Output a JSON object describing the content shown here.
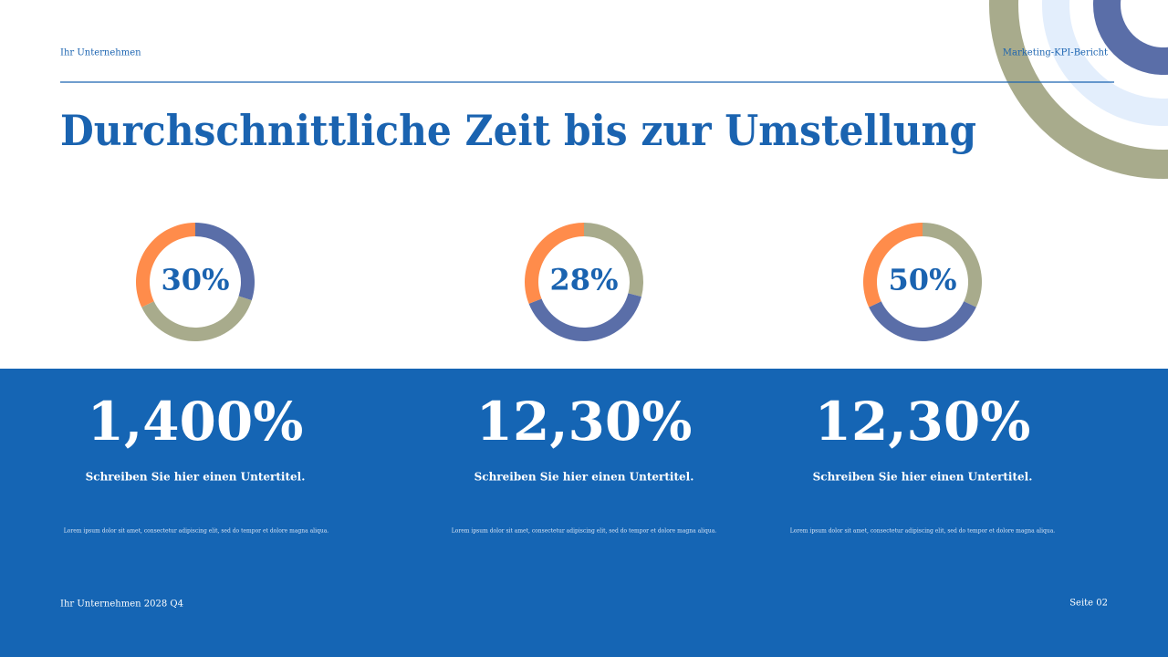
{
  "header": {
    "company": "Ihr Unternehmen",
    "report": "Marketing-KPI-Bericht"
  },
  "title": "Durchschnittliche Zeit bis zur Umstellung",
  "donuts": [
    {
      "label": "30%",
      "segments": [
        {
          "color": "#5a6ea8",
          "value": 30
        },
        {
          "color": "#a8ab8c",
          "value": 38
        },
        {
          "color": "#ff8c4b",
          "value": 32
        }
      ]
    },
    {
      "label": "28%",
      "segments": [
        {
          "color": "#a8ab8c",
          "value": 29
        },
        {
          "color": "#5a6ea8",
          "value": 40
        },
        {
          "color": "#ff8c4b",
          "value": 31
        }
      ]
    },
    {
      "label": "50%",
      "segments": [
        {
          "color": "#a8ab8c",
          "value": 32
        },
        {
          "color": "#5a6ea8",
          "value": 36
        },
        {
          "color": "#ff8c4b",
          "value": 32
        }
      ]
    }
  ],
  "stats": [
    {
      "value": "1,400%",
      "subtitle": "Schreiben Sie hier einen Untertitel.",
      "body": "Lorem ipsum dolor sit amet, consectetur adipiscing elit, sed do tempor et dolore magna aliqua."
    },
    {
      "value": "12,30%",
      "subtitle": "Schreiben Sie hier einen Untertitel.",
      "body": "Lorem ipsum dolor sit amet, consectetur adipiscing elit, sed do tempor et dolore magna aliqua."
    },
    {
      "value": "12,30%",
      "subtitle": "Schreiben Sie hier einen Untertitel.",
      "body": "Lorem ipsum dolor sit amet, consectetur adipiscing elit, sed do tempor et dolore magna aliqua."
    }
  ],
  "footer": {
    "left": "Ihr Unternehmen 2028 Q4",
    "right": "Seite 02"
  }
}
